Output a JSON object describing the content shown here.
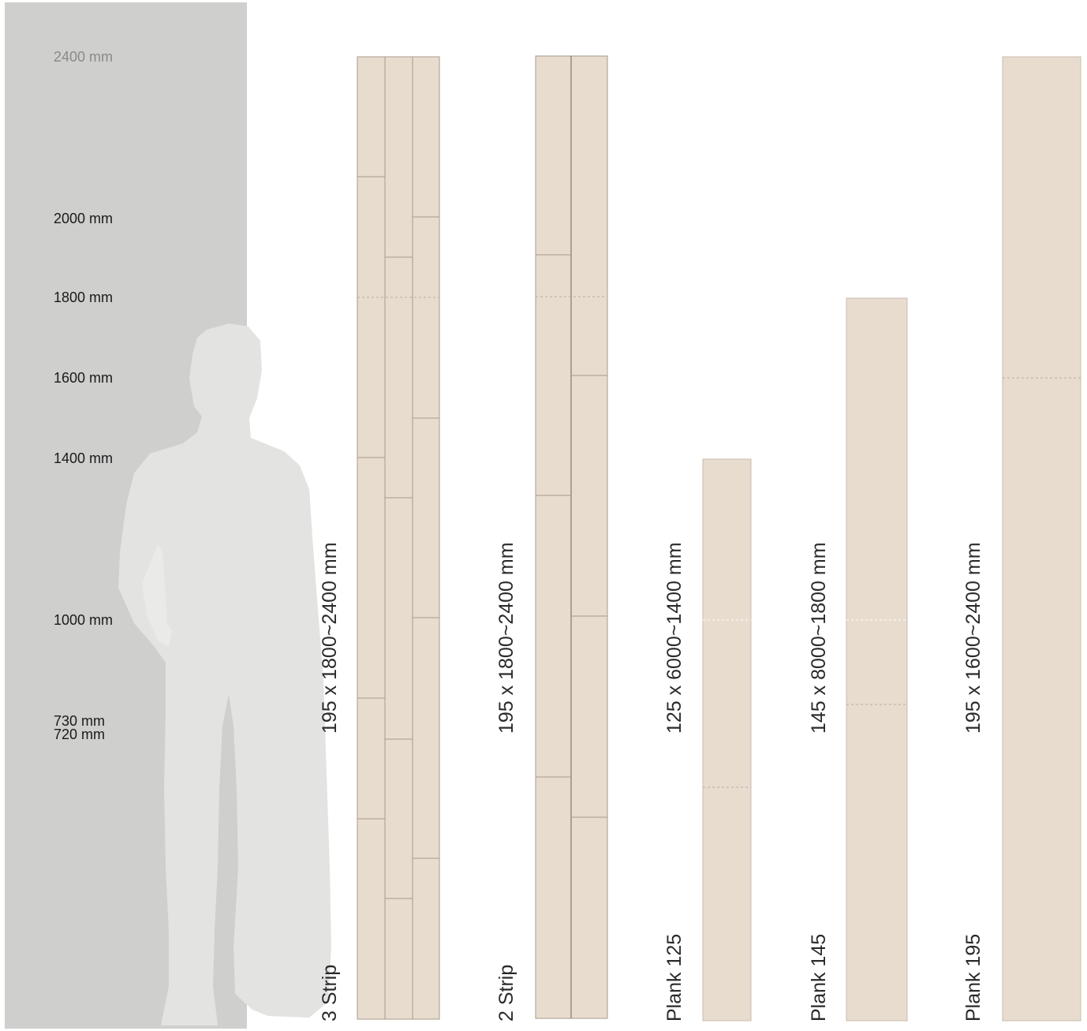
{
  "height_scale": {
    "ticks": [
      {
        "label": "2400 mm",
        "value": 2400,
        "muted": true
      },
      {
        "label": "2000 mm",
        "value": 2000
      },
      {
        "label": "1800 mm",
        "value": 1800
      },
      {
        "label": "1600 mm",
        "value": 1600
      },
      {
        "label": "1400 mm",
        "value": 1400
      },
      {
        "label": "1000 mm",
        "value": 1000
      },
      {
        "label": "730 mm",
        "value": 730
      },
      {
        "label": "720 mm",
        "value": 720
      }
    ]
  },
  "products": [
    {
      "name": "3 Strip",
      "dimensions": "195 x 1800~2400 mm"
    },
    {
      "name": "2 Strip",
      "dimensions": "195 x 1800~2400 mm"
    },
    {
      "name": "Plank 125",
      "dimensions": "125 x 6000~1400 mm"
    },
    {
      "name": "Plank 145",
      "dimensions": "145 x 8000~1800 mm"
    },
    {
      "name": "Plank 195",
      "dimensions": "195 x 1600~2400 mm"
    }
  ],
  "colors": {
    "panel": "#cfcfce",
    "silhouette": "#e3e3e2",
    "board_fill": "#e8dccf",
    "board_line": "#a79a8e",
    "muted_tick": "#8a8a8a"
  }
}
